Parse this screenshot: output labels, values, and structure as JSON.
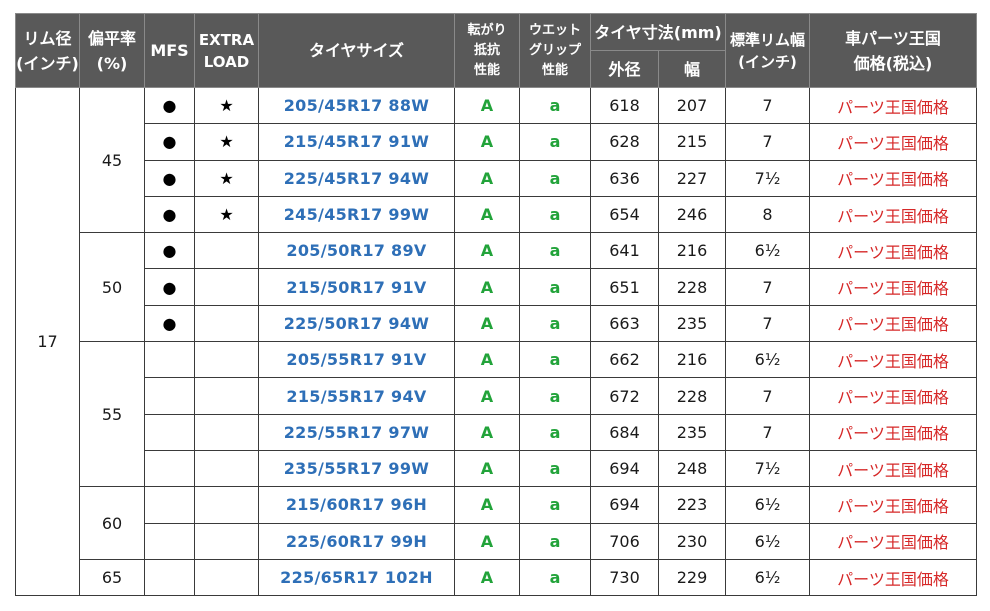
{
  "headers": {
    "rim": [
      "リム径",
      "(インチ)"
    ],
    "aspect": [
      "偏平率",
      "(%)"
    ],
    "mfs": "MFS",
    "xl": [
      "EXTRA",
      "LOAD"
    ],
    "size": "タイヤサイズ",
    "rolling": [
      "転がり",
      "抵抗",
      "性能"
    ],
    "wet": [
      "ウエット",
      "グリップ",
      "性能"
    ],
    "dims": "タイヤ寸法(mm)",
    "od": "外径",
    "width": "幅",
    "std_rim": [
      "標準リム幅",
      "(インチ)"
    ],
    "price": [
      "車パーツ王国",
      "価格(税込)"
    ]
  },
  "rim_diameter": "17",
  "groups": [
    {
      "aspect": "45",
      "rows": [
        {
          "mfs": "●",
          "xl": "★",
          "size": "205/45R17 88W",
          "rolling": "A",
          "wet": "a",
          "od": "618",
          "width": "207",
          "rim": "7",
          "price": "パーツ王国価格"
        },
        {
          "mfs": "●",
          "xl": "★",
          "size": "215/45R17 91W",
          "rolling": "A",
          "wet": "a",
          "od": "628",
          "width": "215",
          "rim": "7",
          "price": "パーツ王国価格"
        },
        {
          "mfs": "●",
          "xl": "★",
          "size": "225/45R17 94W",
          "rolling": "A",
          "wet": "a",
          "od": "636",
          "width": "227",
          "rim": "7½",
          "price": "パーツ王国価格"
        },
        {
          "mfs": "●",
          "xl": "★",
          "size": "245/45R17 99W",
          "rolling": "A",
          "wet": "a",
          "od": "654",
          "width": "246",
          "rim": "8",
          "price": "パーツ王国価格"
        }
      ]
    },
    {
      "aspect": "50",
      "rows": [
        {
          "mfs": "●",
          "xl": "",
          "size": "205/50R17 89V",
          "rolling": "A",
          "wet": "a",
          "od": "641",
          "width": "216",
          "rim": "6½",
          "price": "パーツ王国価格"
        },
        {
          "mfs": "●",
          "xl": "",
          "size": "215/50R17 91V",
          "rolling": "A",
          "wet": "a",
          "od": "651",
          "width": "228",
          "rim": "7",
          "price": "パーツ王国価格"
        },
        {
          "mfs": "●",
          "xl": "",
          "size": "225/50R17 94W",
          "rolling": "A",
          "wet": "a",
          "od": "663",
          "width": "235",
          "rim": "7",
          "price": "パーツ王国価格"
        }
      ]
    },
    {
      "aspect": "55",
      "rows": [
        {
          "mfs": "",
          "xl": "",
          "size": "205/55R17 91V",
          "rolling": "A",
          "wet": "a",
          "od": "662",
          "width": "216",
          "rim": "6½",
          "price": "パーツ王国価格"
        },
        {
          "mfs": "",
          "xl": "",
          "size": "215/55R17 94V",
          "rolling": "A",
          "wet": "a",
          "od": "672",
          "width": "228",
          "rim": "7",
          "price": "パーツ王国価格"
        },
        {
          "mfs": "",
          "xl": "",
          "size": "225/55R17 97W",
          "rolling": "A",
          "wet": "a",
          "od": "684",
          "width": "235",
          "rim": "7",
          "price": "パーツ王国価格"
        },
        {
          "mfs": "",
          "xl": "",
          "size": "235/55R17 99W",
          "rolling": "A",
          "wet": "a",
          "od": "694",
          "width": "248",
          "rim": "7½",
          "price": "パーツ王国価格"
        }
      ]
    },
    {
      "aspect": "60",
      "rows": [
        {
          "mfs": "",
          "xl": "",
          "size": "215/60R17 96H",
          "rolling": "A",
          "wet": "a",
          "od": "694",
          "width": "223",
          "rim": "6½",
          "price": "パーツ王国価格"
        },
        {
          "mfs": "",
          "xl": "",
          "size": "225/60R17 99H",
          "rolling": "A",
          "wet": "a",
          "od": "706",
          "width": "230",
          "rim": "6½",
          "price": "パーツ王国価格"
        }
      ]
    },
    {
      "aspect": "65",
      "rows": [
        {
          "mfs": "",
          "xl": "",
          "size": "225/65R17 102H",
          "rolling": "A",
          "wet": "a",
          "od": "730",
          "width": "229",
          "rim": "6½",
          "price": "パーツ王国価格"
        }
      ]
    }
  ],
  "colors": {
    "header_bg": "#595959",
    "size_text": "#2e6fb7",
    "grade_text": "#22a33a",
    "price_text": "#d62828"
  }
}
